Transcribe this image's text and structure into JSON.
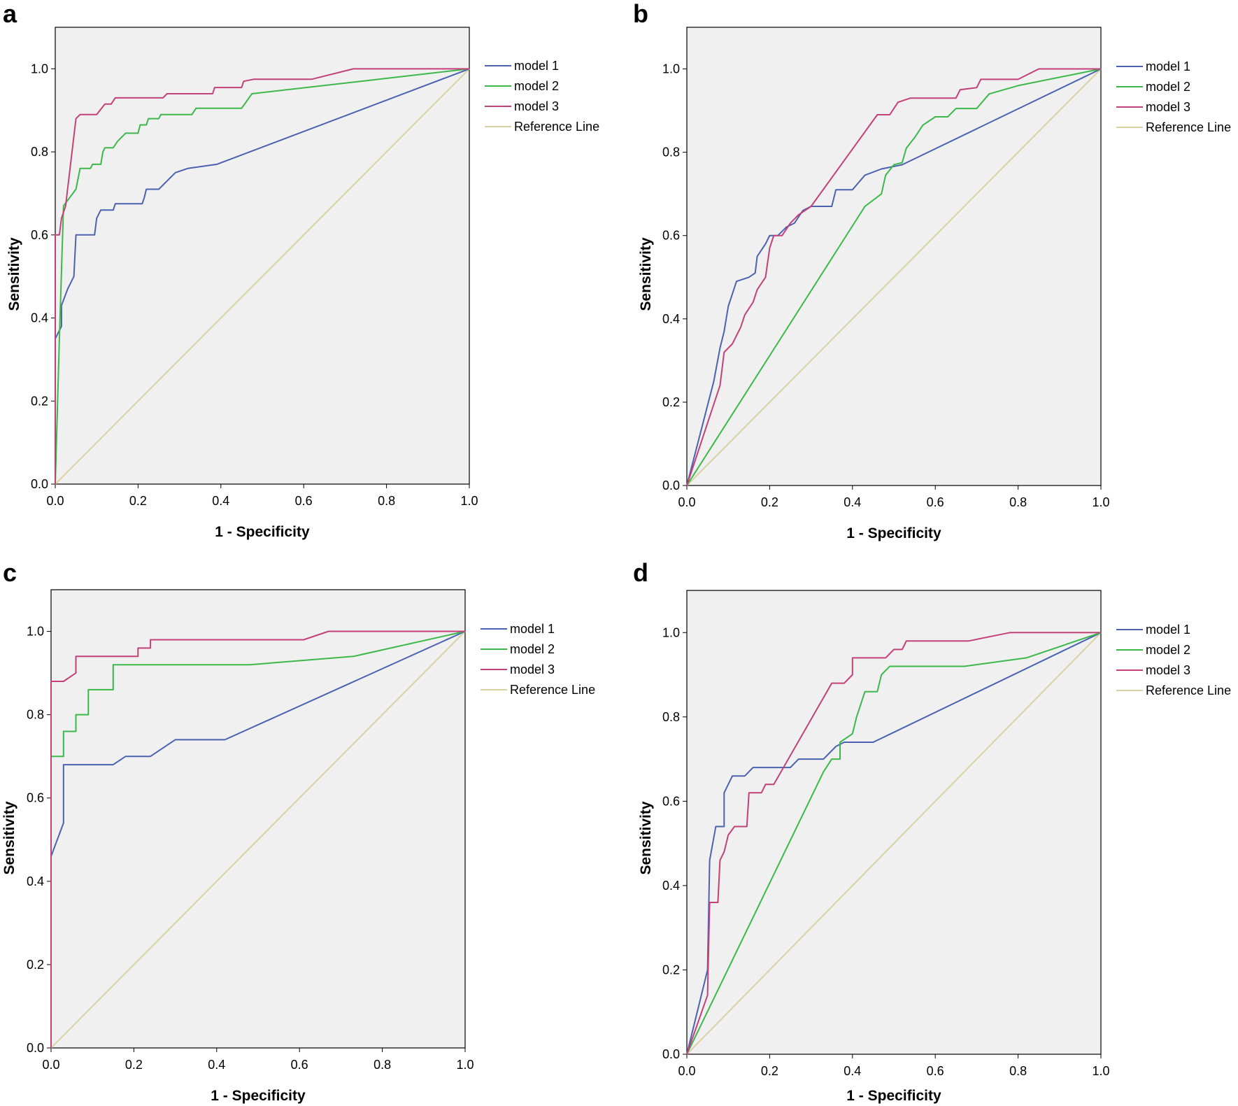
{
  "chart_data": [
    {
      "panel": "a",
      "type": "line",
      "xlabel": "1 - Specificity",
      "ylabel": "Sensitivity",
      "xlim": [
        0,
        1
      ],
      "ylim": [
        0,
        1.1
      ],
      "xticks": [
        "0.0",
        "0.2",
        "0.4",
        "0.6",
        "0.8",
        "1.0"
      ],
      "yticks": [
        "0.0",
        "0.2",
        "0.4",
        "0.6",
        "0.8",
        "1.0"
      ],
      "series": [
        {
          "name": "model 1",
          "color": "#4a62b0",
          "points": [
            [
              0,
              0
            ],
            [
              0,
              0.35
            ],
            [
              0.015,
              0.38
            ],
            [
              0.015,
              0.43
            ],
            [
              0.03,
              0.47
            ],
            [
              0.04,
              0.49
            ],
            [
              0.045,
              0.5
            ],
            [
              0.05,
              0.6
            ],
            [
              0.095,
              0.6
            ],
            [
              0.1,
              0.64
            ],
            [
              0.11,
              0.66
            ],
            [
              0.14,
              0.66
            ],
            [
              0.145,
              0.675
            ],
            [
              0.21,
              0.675
            ],
            [
              0.215,
              0.69
            ],
            [
              0.22,
              0.71
            ],
            [
              0.25,
              0.71
            ],
            [
              0.29,
              0.75
            ],
            [
              0.32,
              0.76
            ],
            [
              0.39,
              0.77
            ],
            [
              1,
              1
            ]
          ]
        },
        {
          "name": "model 2",
          "color": "#3cb84a",
          "points": [
            [
              0,
              0
            ],
            [
              0.01,
              0.35
            ],
            [
              0.02,
              0.67
            ],
            [
              0.05,
              0.71
            ],
            [
              0.06,
              0.76
            ],
            [
              0.085,
              0.76
            ],
            [
              0.09,
              0.77
            ],
            [
              0.11,
              0.77
            ],
            [
              0.115,
              0.8
            ],
            [
              0.12,
              0.81
            ],
            [
              0.14,
              0.81
            ],
            [
              0.15,
              0.825
            ],
            [
              0.16,
              0.835
            ],
            [
              0.17,
              0.845
            ],
            [
              0.2,
              0.845
            ],
            [
              0.205,
              0.865
            ],
            [
              0.22,
              0.865
            ],
            [
              0.225,
              0.88
            ],
            [
              0.25,
              0.88
            ],
            [
              0.255,
              0.89
            ],
            [
              0.33,
              0.89
            ],
            [
              0.34,
              0.905
            ],
            [
              0.45,
              0.905
            ],
            [
              0.475,
              0.94
            ],
            [
              1,
              1
            ]
          ]
        },
        {
          "name": "model 3",
          "color": "#c3407a",
          "points": [
            [
              0,
              0
            ],
            [
              0,
              0.6
            ],
            [
              0.01,
              0.6
            ],
            [
              0.015,
              0.64
            ],
            [
              0.025,
              0.67
            ],
            [
              0.05,
              0.88
            ],
            [
              0.06,
              0.89
            ],
            [
              0.1,
              0.89
            ],
            [
              0.12,
              0.915
            ],
            [
              0.135,
              0.915
            ],
            [
              0.145,
              0.93
            ],
            [
              0.26,
              0.93
            ],
            [
              0.27,
              0.94
            ],
            [
              0.38,
              0.94
            ],
            [
              0.385,
              0.955
            ],
            [
              0.45,
              0.955
            ],
            [
              0.455,
              0.97
            ],
            [
              0.48,
              0.975
            ],
            [
              0.62,
              0.975
            ],
            [
              0.72,
              1
            ],
            [
              1,
              1
            ]
          ]
        },
        {
          "name": "Reference Line",
          "color": "#d9d2a3",
          "points": [
            [
              0,
              0
            ],
            [
              1,
              1
            ]
          ]
        }
      ]
    },
    {
      "panel": "b",
      "type": "line",
      "xlabel": "1 - Specificity",
      "ylabel": "Sensitivity",
      "xlim": [
        0,
        1
      ],
      "ylim": [
        0,
        1.1
      ],
      "xticks": [
        "0.0",
        "0.2",
        "0.4",
        "0.6",
        "0.8",
        "1.0"
      ],
      "yticks": [
        "0.0",
        "0.2",
        "0.4",
        "0.6",
        "0.8",
        "1.0"
      ],
      "series": [
        {
          "name": "model 1",
          "color": "#4a62b0",
          "points": [
            [
              0,
              0
            ],
            [
              0.065,
              0.25
            ],
            [
              0.08,
              0.33
            ],
            [
              0.09,
              0.37
            ],
            [
              0.1,
              0.43
            ],
            [
              0.11,
              0.46
            ],
            [
              0.12,
              0.49
            ],
            [
              0.15,
              0.5
            ],
            [
              0.165,
              0.51
            ],
            [
              0.17,
              0.55
            ],
            [
              0.19,
              0.58
            ],
            [
              0.2,
              0.6
            ],
            [
              0.22,
              0.6
            ],
            [
              0.24,
              0.62
            ],
            [
              0.26,
              0.63
            ],
            [
              0.28,
              0.66
            ],
            [
              0.3,
              0.67
            ],
            [
              0.35,
              0.67
            ],
            [
              0.36,
              0.71
            ],
            [
              0.4,
              0.71
            ],
            [
              0.43,
              0.745
            ],
            [
              0.47,
              0.76
            ],
            [
              0.52,
              0.77
            ],
            [
              1,
              1
            ]
          ]
        },
        {
          "name": "model 2",
          "color": "#3cb84a",
          "points": [
            [
              0,
              0
            ],
            [
              0.43,
              0.67
            ],
            [
              0.47,
              0.7
            ],
            [
              0.48,
              0.745
            ],
            [
              0.5,
              0.77
            ],
            [
              0.52,
              0.775
            ],
            [
              0.53,
              0.81
            ],
            [
              0.55,
              0.835
            ],
            [
              0.57,
              0.865
            ],
            [
              0.6,
              0.885
            ],
            [
              0.63,
              0.885
            ],
            [
              0.65,
              0.905
            ],
            [
              0.7,
              0.905
            ],
            [
              0.73,
              0.94
            ],
            [
              0.8,
              0.96
            ],
            [
              1,
              1
            ]
          ]
        },
        {
          "name": "model 3",
          "color": "#c3407a",
          "points": [
            [
              0,
              0
            ],
            [
              0.08,
              0.24
            ],
            [
              0.09,
              0.32
            ],
            [
              0.11,
              0.34
            ],
            [
              0.13,
              0.38
            ],
            [
              0.14,
              0.41
            ],
            [
              0.16,
              0.44
            ],
            [
              0.17,
              0.47
            ],
            [
              0.19,
              0.5
            ],
            [
              0.2,
              0.57
            ],
            [
              0.21,
              0.6
            ],
            [
              0.23,
              0.6
            ],
            [
              0.25,
              0.63
            ],
            [
              0.27,
              0.65
            ],
            [
              0.3,
              0.67
            ],
            [
              0.46,
              0.89
            ],
            [
              0.49,
              0.89
            ],
            [
              0.51,
              0.92
            ],
            [
              0.54,
              0.93
            ],
            [
              0.65,
              0.93
            ],
            [
              0.66,
              0.95
            ],
            [
              0.7,
              0.955
            ],
            [
              0.71,
              0.975
            ],
            [
              0.8,
              0.975
            ],
            [
              0.85,
              1
            ],
            [
              1,
              1
            ]
          ]
        },
        {
          "name": "Reference Line",
          "color": "#d9d2a3",
          "points": [
            [
              0,
              0
            ],
            [
              1,
              1
            ]
          ]
        }
      ]
    },
    {
      "panel": "c",
      "type": "line",
      "xlabel": "1 - Specificity",
      "ylabel": "Sensitivity",
      "xlim": [
        0,
        1
      ],
      "ylim": [
        0,
        1.1
      ],
      "xticks": [
        "0.0",
        "0.2",
        "0.4",
        "0.6",
        "0.8",
        "1.0"
      ],
      "yticks": [
        "0.0",
        "0.2",
        "0.4",
        "0.6",
        "0.8",
        "1.0"
      ],
      "series": [
        {
          "name": "model 1",
          "color": "#4a62b0",
          "points": [
            [
              0,
              0
            ],
            [
              0,
              0.46
            ],
            [
              0.03,
              0.54
            ],
            [
              0.03,
              0.68
            ],
            [
              0.15,
              0.68
            ],
            [
              0.18,
              0.7
            ],
            [
              0.24,
              0.7
            ],
            [
              0.3,
              0.74
            ],
            [
              0.42,
              0.74
            ],
            [
              1,
              1
            ]
          ]
        },
        {
          "name": "model 2",
          "color": "#3cb84a",
          "points": [
            [
              0,
              0
            ],
            [
              0,
              0.7
            ],
            [
              0.03,
              0.7
            ],
            [
              0.03,
              0.76
            ],
            [
              0.06,
              0.76
            ],
            [
              0.06,
              0.8
            ],
            [
              0.09,
              0.8
            ],
            [
              0.09,
              0.86
            ],
            [
              0.15,
              0.86
            ],
            [
              0.15,
              0.92
            ],
            [
              0.48,
              0.92
            ],
            [
              0.73,
              0.94
            ],
            [
              1,
              1
            ]
          ]
        },
        {
          "name": "model 3",
          "color": "#c3407a",
          "points": [
            [
              0,
              0
            ],
            [
              0,
              0.88
            ],
            [
              0.03,
              0.88
            ],
            [
              0.06,
              0.9
            ],
            [
              0.06,
              0.94
            ],
            [
              0.21,
              0.94
            ],
            [
              0.21,
              0.96
            ],
            [
              0.24,
              0.96
            ],
            [
              0.24,
              0.98
            ],
            [
              0.61,
              0.98
            ],
            [
              0.67,
              1
            ],
            [
              1,
              1
            ]
          ]
        },
        {
          "name": "Reference Line",
          "color": "#d9d2a3",
          "points": [
            [
              0,
              0
            ],
            [
              1,
              1
            ]
          ]
        }
      ]
    },
    {
      "panel": "d",
      "type": "line",
      "xlabel": "1 - Specificity",
      "ylabel": "Sensitivity",
      "xlim": [
        0,
        1
      ],
      "ylim": [
        0,
        1.1
      ],
      "xticks": [
        "0.0",
        "0.2",
        "0.4",
        "0.6",
        "0.8",
        "1.0"
      ],
      "yticks": [
        "0.0",
        "0.2",
        "0.4",
        "0.6",
        "0.8",
        "1.0"
      ],
      "series": [
        {
          "name": "model 1",
          "color": "#4a62b0",
          "points": [
            [
              0,
              0
            ],
            [
              0.05,
              0.2
            ],
            [
              0.055,
              0.46
            ],
            [
              0.07,
              0.54
            ],
            [
              0.09,
              0.54
            ],
            [
              0.09,
              0.62
            ],
            [
              0.11,
              0.66
            ],
            [
              0.14,
              0.66
            ],
            [
              0.16,
              0.68
            ],
            [
              0.25,
              0.68
            ],
            [
              0.27,
              0.7
            ],
            [
              0.33,
              0.7
            ],
            [
              0.36,
              0.73
            ],
            [
              0.38,
              0.74
            ],
            [
              0.45,
              0.74
            ],
            [
              1,
              1
            ]
          ]
        },
        {
          "name": "model 2",
          "color": "#3cb84a",
          "points": [
            [
              0,
              0
            ],
            [
              0.33,
              0.67
            ],
            [
              0.35,
              0.7
            ],
            [
              0.37,
              0.7
            ],
            [
              0.37,
              0.74
            ],
            [
              0.4,
              0.76
            ],
            [
              0.41,
              0.8
            ],
            [
              0.43,
              0.86
            ],
            [
              0.46,
              0.86
            ],
            [
              0.47,
              0.9
            ],
            [
              0.49,
              0.92
            ],
            [
              0.67,
              0.92
            ],
            [
              0.82,
              0.94
            ],
            [
              1,
              1
            ]
          ]
        },
        {
          "name": "model 3",
          "color": "#c3407a",
          "points": [
            [
              0,
              0
            ],
            [
              0.05,
              0.14
            ],
            [
              0.055,
              0.36
            ],
            [
              0.075,
              0.36
            ],
            [
              0.08,
              0.46
            ],
            [
              0.09,
              0.48
            ],
            [
              0.1,
              0.52
            ],
            [
              0.115,
              0.54
            ],
            [
              0.145,
              0.54
            ],
            [
              0.15,
              0.62
            ],
            [
              0.18,
              0.62
            ],
            [
              0.19,
              0.64
            ],
            [
              0.21,
              0.64
            ],
            [
              0.35,
              0.88
            ],
            [
              0.38,
              0.88
            ],
            [
              0.4,
              0.9
            ],
            [
              0.4,
              0.94
            ],
            [
              0.48,
              0.94
            ],
            [
              0.5,
              0.96
            ],
            [
              0.52,
              0.96
            ],
            [
              0.53,
              0.98
            ],
            [
              0.68,
              0.98
            ],
            [
              0.78,
              1
            ],
            [
              1,
              1
            ]
          ]
        },
        {
          "name": "Reference Line",
          "color": "#d9d2a3",
          "points": [
            [
              0,
              0
            ],
            [
              1,
              1
            ]
          ]
        }
      ]
    }
  ]
}
